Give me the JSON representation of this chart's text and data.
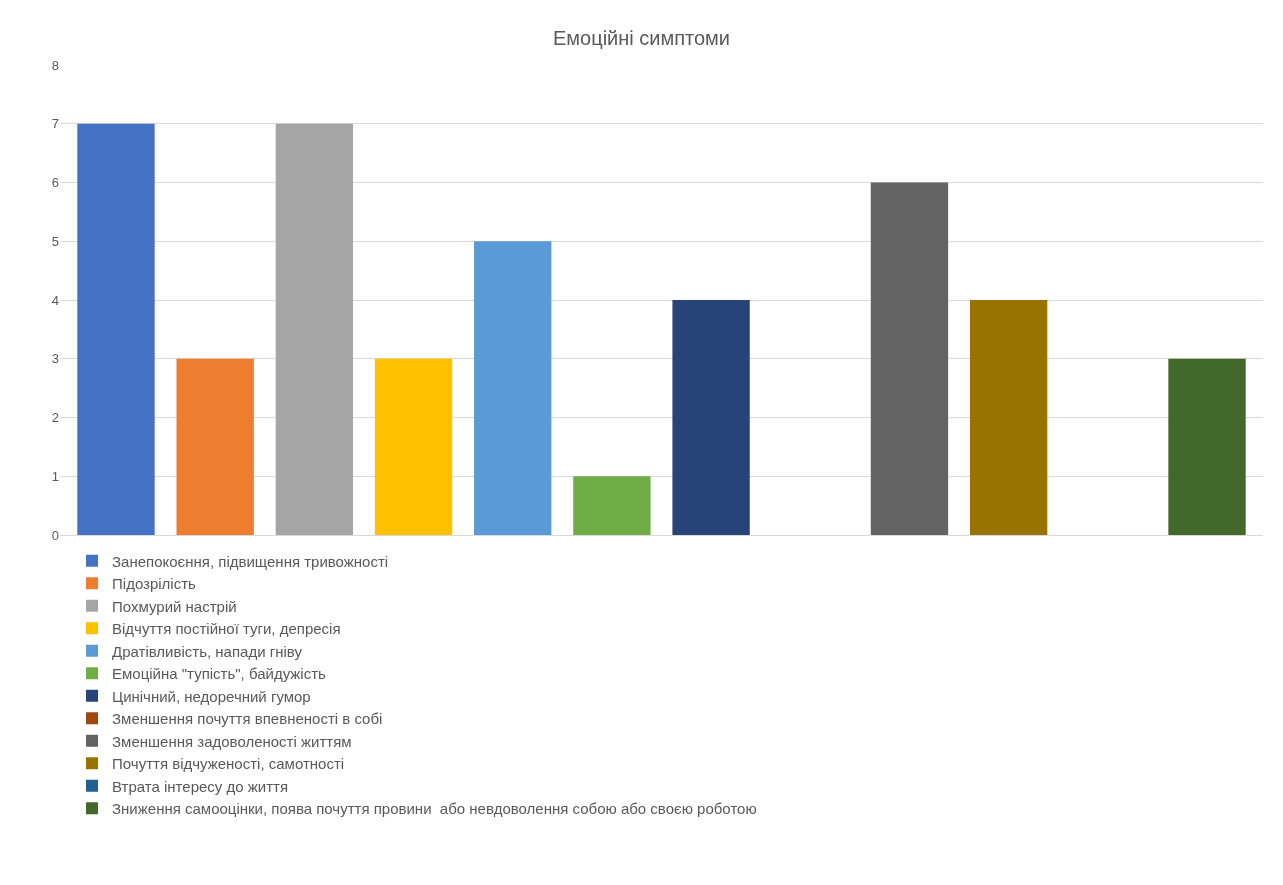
{
  "chart_data": {
    "type": "bar",
    "title": "Емоційні симптоми",
    "categories": [
      null
    ],
    "series": [
      {
        "name": "Занепокоєння, підвищення тривожності",
        "color": "#4472c4",
        "values": [
          7
        ]
      },
      {
        "name": "Підозрілість",
        "color": "#ed7d31",
        "values": [
          3
        ]
      },
      {
        "name": "Похмурий настрій",
        "color": "#a5a5a5",
        "values": [
          7
        ]
      },
      {
        "name": "Відчуття постійної туги, депресія",
        "color": "#ffc000",
        "values": [
          3
        ]
      },
      {
        "name": "Дратівливість, напади гніву",
        "color": "#5b9bd5",
        "values": [
          5
        ]
      },
      {
        "name": "Емоційна \"тупість\", байдужість",
        "color": "#70ad47",
        "values": [
          1
        ]
      },
      {
        "name": "Цинічний, недоречний гумор",
        "color": "#264478",
        "values": [
          4
        ]
      },
      {
        "name": "Зменшення почуття впевненості в собі",
        "color": "#9e480e",
        "values": [
          0
        ]
      },
      {
        "name": "Зменшення задоволеності життям",
        "color": "#636363",
        "values": [
          6
        ]
      },
      {
        "name": "Почуття відчуженості, самотності",
        "color": "#997300",
        "values": [
          4
        ]
      },
      {
        "name": "Втрата інтересу до життя",
        "color": "#255e91",
        "values": [
          0
        ]
      },
      {
        "name": "Зниження самооцінки, поява почуття провини  або невдоволення собою або своєю роботою",
        "color": "#43682b",
        "values": [
          3
        ]
      }
    ],
    "ylim": [
      0,
      8
    ],
    "yticks": [
      0,
      1,
      2,
      3,
      4,
      5,
      6,
      7,
      8
    ],
    "grid": "y",
    "legend": "bottom",
    "tick_labels": "y"
  }
}
